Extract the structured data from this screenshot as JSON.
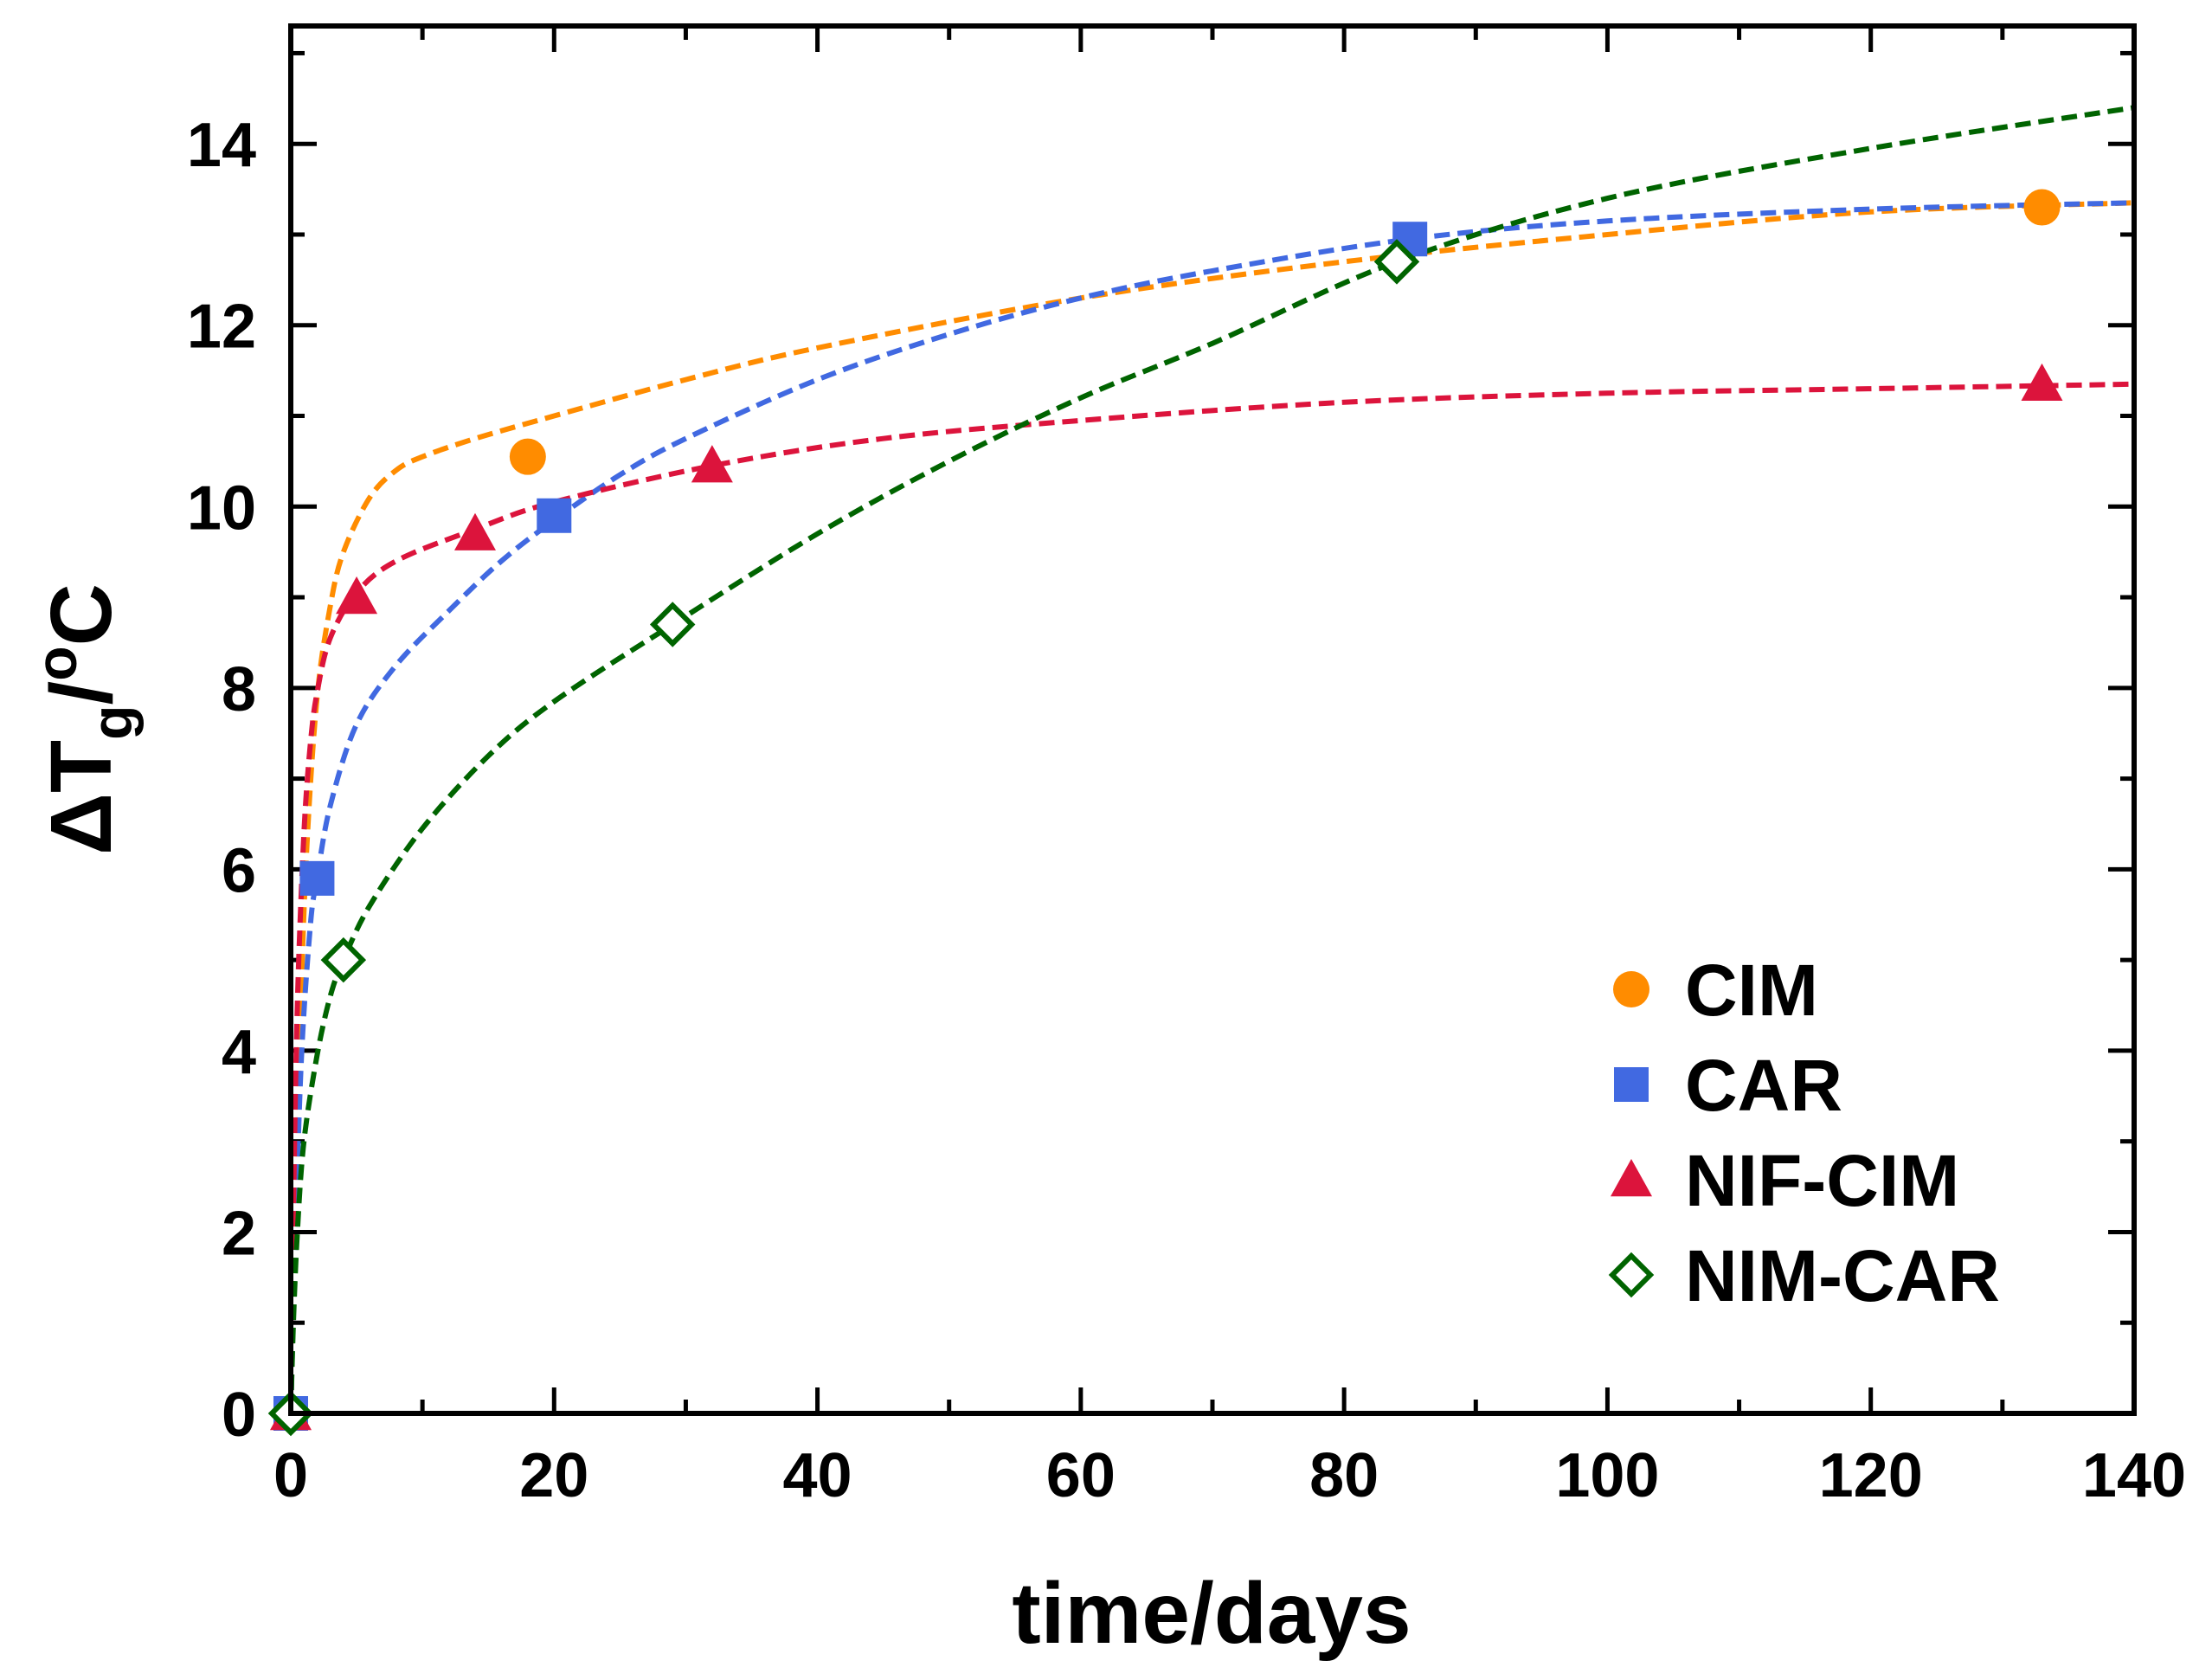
{
  "chart_data": {
    "type": "scatter",
    "xlabel": "time/days",
    "ylabel": {
      "delta": "Δ",
      "symbol": "T",
      "subscript": "g",
      "sep": "/",
      "degree": "o",
      "unit": "C"
    },
    "xlim": [
      0,
      140
    ],
    "ylim": [
      0,
      15.3
    ],
    "xticks": [
      0,
      20,
      40,
      60,
      80,
      100,
      120,
      140
    ],
    "yticks": [
      0,
      2,
      4,
      6,
      8,
      10,
      12,
      14
    ],
    "legend_position": "bottom-right",
    "series": [
      {
        "name": "CIM",
        "color": "#FF8C00",
        "marker": "circle",
        "filled": true,
        "points": [
          [
            0,
            0
          ],
          [
            18,
            10.55
          ],
          [
            133,
            13.3
          ]
        ],
        "fit": [
          [
            0,
            0
          ],
          [
            0.3,
            2.0
          ],
          [
            0.7,
            4.2
          ],
          [
            1.2,
            6.2
          ],
          [
            2,
            7.9
          ],
          [
            3,
            8.9
          ],
          [
            4,
            9.5
          ],
          [
            6,
            10.1
          ],
          [
            8,
            10.4
          ],
          [
            10,
            10.55
          ],
          [
            14,
            10.75
          ],
          [
            20,
            11.0
          ],
          [
            30,
            11.4
          ],
          [
            40,
            11.75
          ],
          [
            60,
            12.3
          ],
          [
            80,
            12.7
          ],
          [
            100,
            13.0
          ],
          [
            120,
            13.25
          ],
          [
            140,
            13.35
          ]
        ]
      },
      {
        "name": "CAR",
        "color": "#4169E1",
        "marker": "square",
        "filled": true,
        "points": [
          [
            0,
            0
          ],
          [
            2,
            5.9
          ],
          [
            20,
            9.9
          ],
          [
            85,
            12.95
          ]
        ],
        "fit": [
          [
            0,
            0
          ],
          [
            0.3,
            1.7
          ],
          [
            0.8,
            3.9
          ],
          [
            1.5,
            5.4
          ],
          [
            2,
            5.9
          ],
          [
            3,
            6.7
          ],
          [
            5,
            7.6
          ],
          [
            8,
            8.25
          ],
          [
            12,
            8.85
          ],
          [
            16,
            9.4
          ],
          [
            20,
            9.85
          ],
          [
            25,
            10.35
          ],
          [
            30,
            10.75
          ],
          [
            40,
            11.4
          ],
          [
            50,
            11.9
          ],
          [
            60,
            12.3
          ],
          [
            70,
            12.6
          ],
          [
            85,
            12.95
          ],
          [
            100,
            13.15
          ],
          [
            120,
            13.28
          ],
          [
            140,
            13.35
          ]
        ]
      },
      {
        "name": "NIF-CIM",
        "color": "#DC143C",
        "marker": "triangle",
        "filled": true,
        "points": [
          [
            0,
            0
          ],
          [
            5,
            9.0
          ],
          [
            14,
            9.7
          ],
          [
            32,
            10.45
          ],
          [
            133,
            11.35
          ]
        ],
        "fit": [
          [
            0,
            0
          ],
          [
            0.2,
            2.2
          ],
          [
            0.5,
            4.5
          ],
          [
            1,
            6.4
          ],
          [
            1.5,
            7.4
          ],
          [
            2,
            7.95
          ],
          [
            3,
            8.55
          ],
          [
            5,
            9.05
          ],
          [
            8,
            9.4
          ],
          [
            14,
            9.75
          ],
          [
            20,
            10.05
          ],
          [
            32,
            10.45
          ],
          [
            45,
            10.75
          ],
          [
            60,
            10.95
          ],
          [
            80,
            11.15
          ],
          [
            100,
            11.25
          ],
          [
            120,
            11.3
          ],
          [
            140,
            11.35
          ]
        ]
      },
      {
        "name": "NIM-CAR",
        "color": "#006400",
        "marker": "diamond",
        "filled": false,
        "points": [
          [
            0,
            0
          ],
          [
            4,
            5.0
          ],
          [
            29,
            8.7
          ],
          [
            84,
            12.7
          ]
        ],
        "fit": [
          [
            0,
            0
          ],
          [
            0.2,
            1.0
          ],
          [
            0.5,
            2.0
          ],
          [
            1,
            3.0
          ],
          [
            2,
            3.95
          ],
          [
            3,
            4.6
          ],
          [
            4,
            5.0
          ],
          [
            6,
            5.6
          ],
          [
            10,
            6.45
          ],
          [
            15,
            7.25
          ],
          [
            20,
            7.85
          ],
          [
            29,
            8.7
          ],
          [
            40,
            9.7
          ],
          [
            50,
            10.5
          ],
          [
            60,
            11.2
          ],
          [
            70,
            11.8
          ],
          [
            84,
            12.7
          ],
          [
            100,
            13.4
          ],
          [
            120,
            13.95
          ],
          [
            140,
            14.4
          ]
        ]
      }
    ]
  }
}
